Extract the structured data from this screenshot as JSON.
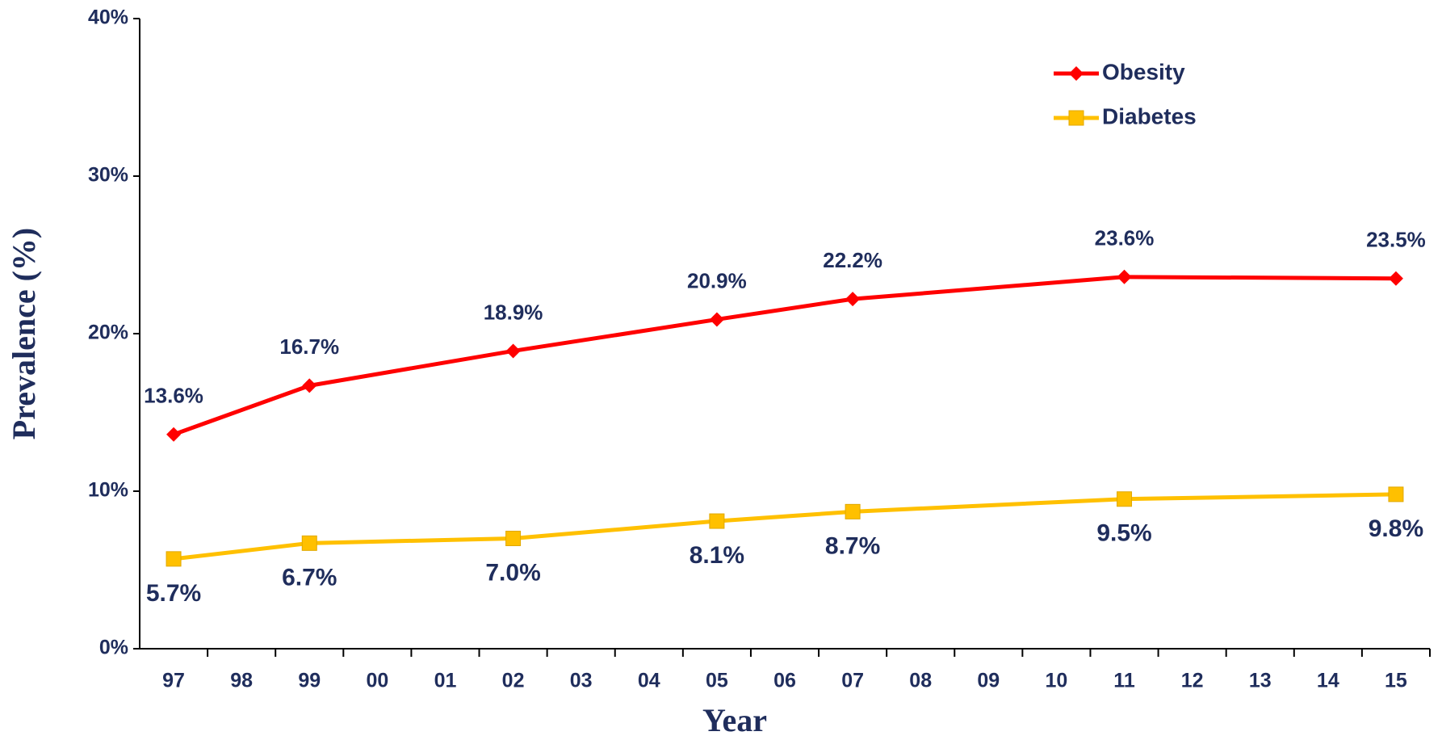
{
  "chart_data": {
    "type": "line",
    "y_label": "Prevalence (%)",
    "x_label": "Year",
    "categories": [
      "97",
      "98",
      "99",
      "00",
      "01",
      "02",
      "03",
      "04",
      "05",
      "06",
      "07",
      "08",
      "09",
      "10",
      "11",
      "12",
      "13",
      "14",
      "15"
    ],
    "x": [
      "97",
      "99",
      "02",
      "05",
      "07",
      "11",
      "15"
    ],
    "ylim": [
      0,
      40
    ],
    "yticks": [
      {
        "value": 0,
        "label": "0%"
      },
      {
        "value": 10,
        "label": "10%"
      },
      {
        "value": 20,
        "label": "20%"
      },
      {
        "value": 30,
        "label": "30%"
      },
      {
        "value": 40,
        "label": "40%"
      }
    ],
    "legend": "upper right",
    "series": [
      {
        "name": "Obesity",
        "color": "#ff0000",
        "marker": "diamond",
        "label_position": "above",
        "values": [
          13.6,
          16.7,
          18.9,
          20.9,
          22.2,
          23.6,
          23.5
        ],
        "value_labels": [
          "13.6%",
          "16.7%",
          "18.9%",
          "20.9%",
          "22.2%",
          "23.6%",
          "23.5%"
        ]
      },
      {
        "name": "Diabetes",
        "color": "#ffc000",
        "marker": "square",
        "label_position": "below",
        "values": [
          5.7,
          6.7,
          7.0,
          8.1,
          8.7,
          9.5,
          9.8
        ],
        "value_labels": [
          "5.7%",
          "6.7%",
          "7.0%",
          "8.1%",
          "8.7%",
          "9.5%",
          "9.8%"
        ]
      }
    ]
  }
}
